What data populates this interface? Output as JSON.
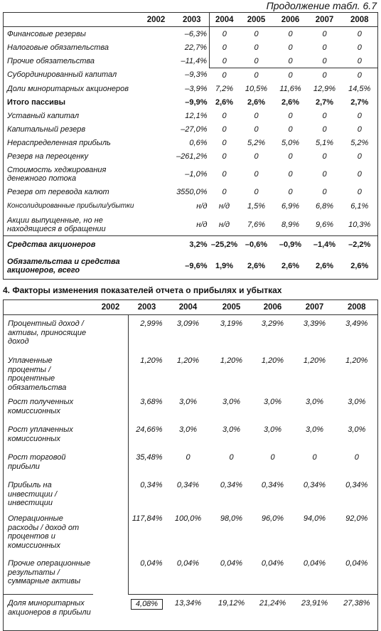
{
  "continuation_title": "Продолжение табл. 6.7",
  "table1": {
    "years": [
      "2002",
      "2003",
      "2004",
      "2005",
      "2006",
      "2007",
      "2008"
    ],
    "rows": [
      {
        "label": "Финансовые резервы",
        "values": [
          "",
          "–6,3%",
          "0",
          "0",
          "0",
          "0",
          "0"
        ]
      },
      {
        "label": "Налоговые обязательства",
        "values": [
          "",
          "22,7%",
          "0",
          "0",
          "0",
          "0",
          "0"
        ]
      },
      {
        "label": "Прочие обязательства",
        "values": [
          "",
          "–11,4%",
          "0",
          "0",
          "0",
          "0",
          "0"
        ]
      },
      {
        "label": "Субординированный капитал",
        "values": [
          "",
          "–9,3%",
          "0",
          "0",
          "0",
          "0",
          "0"
        ]
      },
      {
        "label": "Доли миноритарных акционеров",
        "values": [
          "",
          "–3,9%",
          "7,2%",
          "10,5%",
          "11,6%",
          "12,9%",
          "14,5%"
        ]
      },
      {
        "label": "Итого пассивы",
        "values": [
          "",
          "–9,9%",
          "2,6%",
          "2,6%",
          "2,6%",
          "2,7%",
          "2,7%"
        ]
      },
      {
        "label": "Уставный капитал",
        "values": [
          "",
          "12,1%",
          "0",
          "0",
          "0",
          "0",
          "0"
        ]
      },
      {
        "label": "Капитальный резерв",
        "values": [
          "",
          "–27,0%",
          "0",
          "0",
          "0",
          "0",
          "0"
        ]
      },
      {
        "label": "Нераспределенная прибыль",
        "values": [
          "",
          "0,6%",
          "0",
          "5,2%",
          "5,0%",
          "5,1%",
          "5,2%"
        ]
      },
      {
        "label": "Резерв на переоценку",
        "values": [
          "",
          "–261,2%",
          "0",
          "0",
          "0",
          "0",
          "0"
        ]
      },
      {
        "label": "Стоимость хеджирования денежного потока",
        "values": [
          "",
          "–1,0%",
          "0",
          "0",
          "0",
          "0",
          "0"
        ]
      },
      {
        "label": "Резерв от перевода калют",
        "values": [
          "",
          "3550,0%",
          "0",
          "0",
          "0",
          "0",
          "0"
        ]
      },
      {
        "label": "Консолидированные прибыли/убытки",
        "values": [
          "",
          "н/д",
          "н/д",
          "1,5%",
          "6,9%",
          "6,8%",
          "6,1%"
        ]
      },
      {
        "label": "Акции выпущенные, но не находящиеся в обращении",
        "values": [
          "",
          "н/д",
          "н/д",
          "7,6%",
          "8,9%",
          "9,6%",
          "10,3%"
        ]
      },
      {
        "label": "Средства акционеров",
        "values": [
          "",
          "3,2%",
          "–25,2%",
          "–0,6%",
          "–0,9%",
          "–1,4%",
          "–2,2%"
        ]
      },
      {
        "label": "Обязательства и средства акционеров, всего",
        "values": [
          "",
          "–9,6%",
          "1,9%",
          "2,6%",
          "2,6%",
          "2,6%",
          "2,6%"
        ]
      }
    ]
  },
  "section_title": "4. Факторы изменения показателей отчета о прибылях и убытках",
  "table2": {
    "years": [
      "2002",
      "2003",
      "2004",
      "2005",
      "2006",
      "2007",
      "2008"
    ],
    "rows": [
      {
        "label": "Процентный доход / активы, приносящие доход",
        "values": [
          "",
          "2,99%",
          "3,09%",
          "3,19%",
          "3,29%",
          "3,39%",
          "3,49%"
        ]
      },
      {
        "label": "Уплаченные проценты / процентные обязательства",
        "values": [
          "",
          "1,20%",
          "1,20%",
          "1,20%",
          "1,20%",
          "1,20%",
          "1,20%"
        ]
      },
      {
        "label": "Рост полученных комиссионных",
        "values": [
          "",
          "3,68%",
          "3,0%",
          "3,0%",
          "3,0%",
          "3,0%",
          "3,0%"
        ]
      },
      {
        "label": "Рост уплаченных комиссионных",
        "values": [
          "",
          "24,66%",
          "3,0%",
          "3,0%",
          "3,0%",
          "3,0%",
          "3,0%"
        ]
      },
      {
        "label": "Рост торговой прибыли",
        "values": [
          "",
          "35,48%",
          "0",
          "0",
          "0",
          "0",
          "0"
        ]
      },
      {
        "label": "Прибыль на инвестиции / инвестиции",
        "values": [
          "",
          "0,34%",
          "0,34%",
          "0,34%",
          "0,34%",
          "0,34%",
          "0,34%"
        ]
      },
      {
        "label": "Операционные расходы / доход от процентов и комиссионных",
        "values": [
          "",
          "117,84%",
          "100,0%",
          "98,0%",
          "96,0%",
          "94,0%",
          "92,0%"
        ]
      },
      {
        "label": "Прочие операционные результаты / суммарные активы",
        "values": [
          "",
          "0,04%",
          "0,04%",
          "0,04%",
          "0,04%",
          "0,04%",
          "0,04%"
        ]
      },
      {
        "label": "Доля миноритарных акционеров в прибыли",
        "values": [
          "",
          "4,08%",
          "13,34%",
          "19,12%",
          "21,24%",
          "23,91%",
          "27,38%"
        ]
      }
    ]
  }
}
